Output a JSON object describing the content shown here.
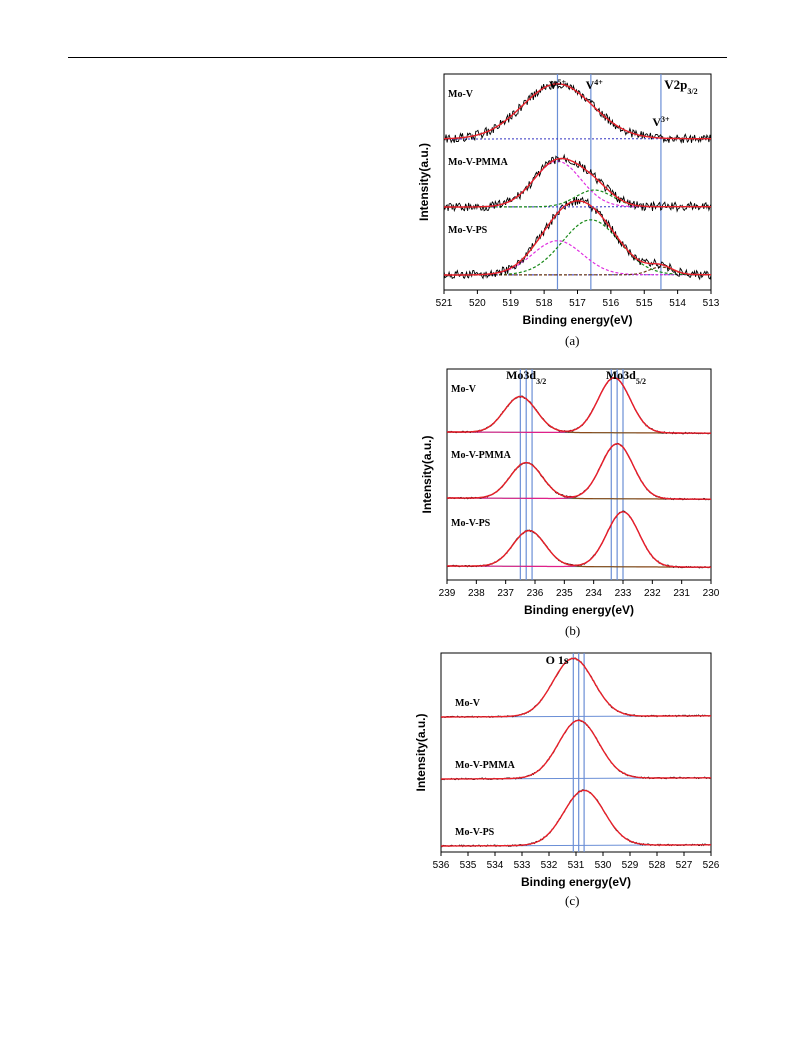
{
  "colors": {
    "raw": "#000000",
    "fit": "#e8202a",
    "v5": "#e030e0",
    "v4": "#1a8a1a",
    "v3": "#6c3a12",
    "background": "#3030c0",
    "guide": "#6b8fd6",
    "mo_fit_brown": "#8b4a1a",
    "mo_fit_magenta": "#e0208a",
    "mo_bg_green": "#3a9a8a"
  },
  "chart_data": [
    {
      "type": "line",
      "caption": "(a)",
      "xlabel": "Binding energy(eV)",
      "ylabel": "Intensity(a.u.)",
      "xlim": [
        521,
        513
      ],
      "xticks": [
        "521",
        "520",
        "519",
        "518",
        "517",
        "516",
        "515",
        "514",
        "513"
      ],
      "reversed_x": true,
      "annotations": [
        {
          "text": "V",
          "sup": "5+",
          "x": 517.6
        },
        {
          "text": "V",
          "sup": "4+",
          "x": 516.5
        },
        {
          "text": "V",
          "sup": "3+",
          "x": 514.5
        },
        {
          "text": "V2p",
          "sub": "3/2",
          "x": 513.4
        }
      ],
      "guides": [
        517.6,
        516.6,
        514.5
      ],
      "series": [
        {
          "name": "Mo-V-PS",
          "offset": 2,
          "peaks": [
            {
              "center": 517.6,
              "height": 0.62,
              "width": 0.75,
              "kind": "v5"
            },
            {
              "center": 516.6,
              "height": 1.0,
              "width": 0.85,
              "kind": "v4"
            },
            {
              "center": 514.5,
              "height": 0.14,
              "width": 0.35,
              "kind": "v3"
            }
          ]
        },
        {
          "name": "Mo-V-PMMA",
          "offset": 1,
          "peaks": [
            {
              "center": 517.6,
              "height": 0.95,
              "width": 0.7,
              "kind": "v5"
            },
            {
              "center": 516.5,
              "height": 0.35,
              "width": 0.55,
              "kind": "v4"
            }
          ]
        },
        {
          "name": "Mo-V",
          "offset": 0,
          "peaks": [
            {
              "center": 517.6,
              "height": 1.0,
              "width": 1.05,
              "kind": "single"
            }
          ]
        }
      ]
    },
    {
      "type": "line",
      "caption": "(b)",
      "xlabel": "Binding energy(eV)",
      "ylabel": "Intensity(a.u.)",
      "xlim": [
        239,
        230
      ],
      "xticks": [
        "239",
        "238",
        "237",
        "236",
        "235",
        "234",
        "233",
        "232",
        "231",
        "230"
      ],
      "reversed_x": true,
      "annotations": [
        {
          "text": "Mo3d",
          "sub": "3/2",
          "x": 236.3
        },
        {
          "text": "Mo3d",
          "sub": "5/2",
          "x": 232.9
        }
      ],
      "guides": [
        236.5,
        236.3,
        236.1,
        233.4,
        233.2,
        233.0
      ],
      "series": [
        {
          "name": "Mo-V-PS",
          "offset": 2,
          "peaks": [
            {
              "center": 236.2,
              "height": 0.65,
              "width": 0.55
            },
            {
              "center": 233.0,
              "height": 1.0,
              "width": 0.55
            }
          ]
        },
        {
          "name": "Mo-V-PMMA",
          "offset": 1,
          "peaks": [
            {
              "center": 236.3,
              "height": 0.65,
              "width": 0.55
            },
            {
              "center": 233.2,
              "height": 1.0,
              "width": 0.55
            }
          ]
        },
        {
          "name": "Mo-V",
          "offset": 0,
          "peaks": [
            {
              "center": 236.5,
              "height": 0.65,
              "width": 0.55
            },
            {
              "center": 233.3,
              "height": 1.0,
              "width": 0.55
            }
          ]
        }
      ]
    },
    {
      "type": "line",
      "caption": "(c)",
      "xlabel": "Binding energy(eV)",
      "ylabel": "Intensity(a.u.)",
      "xlim": [
        536,
        526
      ],
      "xticks": [
        "536",
        "535",
        "534",
        "533",
        "532",
        "531",
        "530",
        "529",
        "528",
        "527",
        "526"
      ],
      "reversed_x": true,
      "annotations": [
        {
          "text": "O 1s",
          "x": 531.7
        }
      ],
      "guides": [
        531.1,
        530.9,
        530.7
      ],
      "series": [
        {
          "name": "Mo-V-PS",
          "offset": 2,
          "peaks": [
            {
              "center": 530.7,
              "height": 1.0,
              "width": 0.75
            }
          ]
        },
        {
          "name": "Mo-V-PMMA",
          "offset": 1,
          "peaks": [
            {
              "center": 530.9,
              "height": 1.0,
              "width": 0.75
            }
          ]
        },
        {
          "name": "Mo-V",
          "offset": 0,
          "peaks": [
            {
              "center": 531.1,
              "height": 1.0,
              "width": 0.75
            }
          ]
        }
      ]
    }
  ]
}
